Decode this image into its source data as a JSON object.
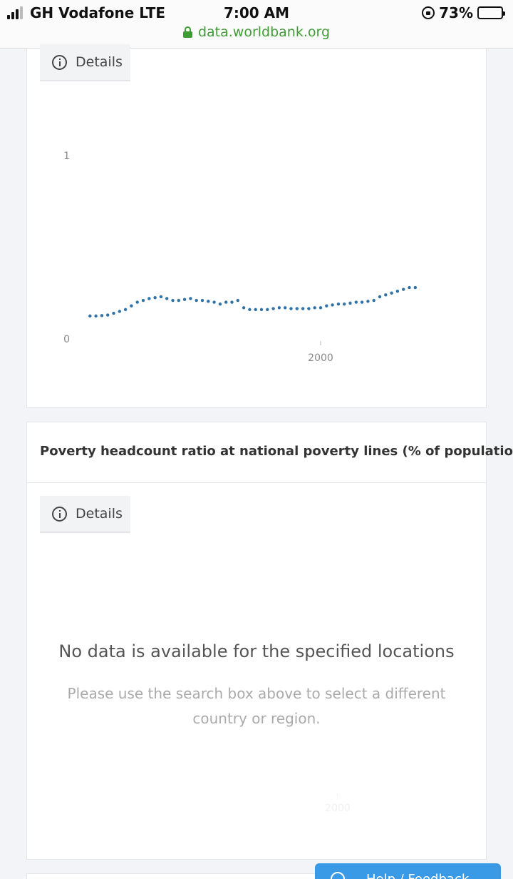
{
  "status_bar": {
    "carrier": "GH Vodafone LTE",
    "time": "7:00 AM",
    "battery": "73%",
    "battery_level": 0.73,
    "url": "data.worldbank.org"
  },
  "details_label": "Details",
  "chart1": {
    "chart_data": {
      "type": "scatter",
      "x_ticks": [
        2000
      ],
      "y_ticks": [
        0,
        1
      ],
      "ylim": [
        0,
        1
      ],
      "xlim": [
        1960,
        2020
      ],
      "x": [
        1961,
        1962,
        1963,
        1964,
        1965,
        1966,
        1967,
        1968,
        1969,
        1970,
        1971,
        1972,
        1973,
        1974,
        1975,
        1976,
        1977,
        1978,
        1979,
        1980,
        1981,
        1982,
        1983,
        1984,
        1985,
        1986,
        1987,
        1988,
        1989,
        1990,
        1991,
        1992,
        1993,
        1994,
        1995,
        1996,
        1997,
        1998,
        1999,
        2000,
        2001,
        2002,
        2003,
        2004,
        2005,
        2006,
        2007,
        2008,
        2009,
        2010,
        2011,
        2012,
        2013,
        2014,
        2015,
        2016
      ],
      "y": [
        0.125,
        0.125,
        0.127,
        0.13,
        0.14,
        0.15,
        0.16,
        0.18,
        0.2,
        0.21,
        0.22,
        0.225,
        0.23,
        0.22,
        0.21,
        0.21,
        0.215,
        0.22,
        0.21,
        0.21,
        0.205,
        0.2,
        0.19,
        0.2,
        0.2,
        0.21,
        0.17,
        0.16,
        0.16,
        0.16,
        0.16,
        0.165,
        0.17,
        0.17,
        0.165,
        0.165,
        0.165,
        0.165,
        0.17,
        0.17,
        0.18,
        0.185,
        0.19,
        0.19,
        0.195,
        0.2,
        0.2,
        0.205,
        0.21,
        0.23,
        0.24,
        0.25,
        0.26,
        0.27,
        0.28,
        0.28
      ]
    }
  },
  "chart2": {
    "title": "Poverty headcount ratio at national poverty lines (% of population)",
    "no_data_title": "No data is available for the specified locations",
    "no_data_message": "Please use the search box above to select a different country or region.",
    "x_tick_label": "2000"
  },
  "help_button": {
    "label": "Help / Feedback"
  }
}
